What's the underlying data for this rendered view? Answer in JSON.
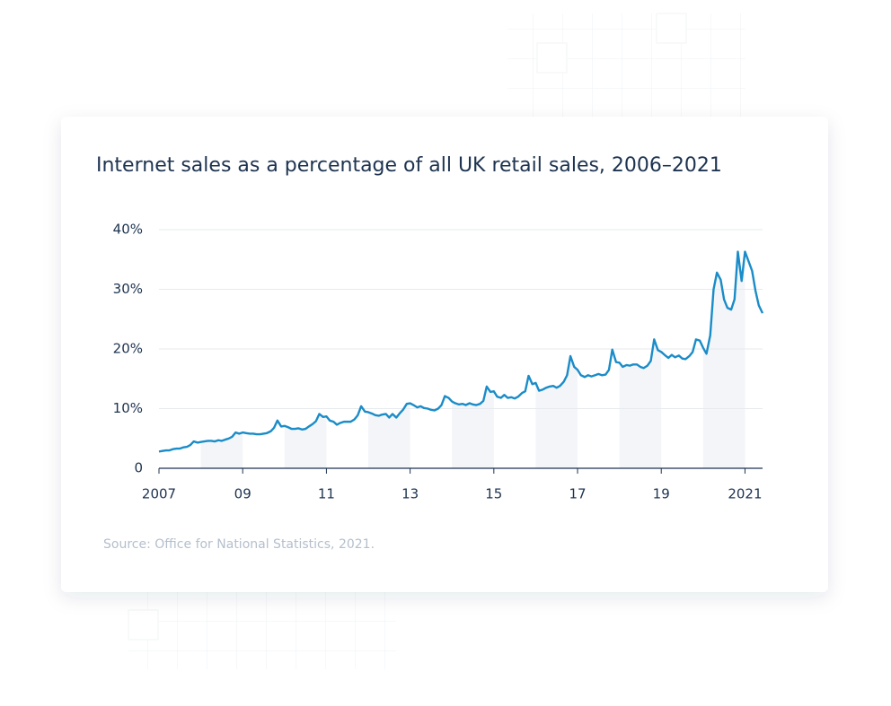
{
  "chart_data": {
    "type": "line",
    "title": "Internet sales as a percentage of all UK retail sales, 2006–2021",
    "source": "Source: Office for National Statistics, 2021.",
    "color": "#1a8cc8",
    "xlim": [
      2007,
      2021.42
    ],
    "xticks": [
      2007,
      {
        "value": 2009,
        "label": "09"
      },
      {
        "value": 2011,
        "label": "11"
      },
      {
        "value": 2013,
        "label": "13"
      },
      {
        "value": 2015,
        "label": "15"
      },
      {
        "value": 2017,
        "label": "17"
      },
      {
        "value": 2019,
        "label": "19"
      },
      2021
    ],
    "ylim": [
      0,
      40
    ],
    "yticks": [
      0,
      {
        "value": 10,
        "label": "10%"
      },
      {
        "value": 20,
        "label": "20%"
      },
      {
        "value": 30,
        "label": "30%"
      },
      {
        "value": 40,
        "label": "40%"
      }
    ],
    "grid": true,
    "x": [
      2007,
      2007.08,
      2007.17,
      2007.25,
      2007.33,
      2007.42,
      2007.5,
      2007.58,
      2007.67,
      2007.75,
      2007.83,
      2007.92,
      2008,
      2008.08,
      2008.17,
      2008.25,
      2008.33,
      2008.42,
      2008.5,
      2008.58,
      2008.67,
      2008.75,
      2008.83,
      2008.92,
      2009,
      2009.08,
      2009.17,
      2009.25,
      2009.33,
      2009.42,
      2009.5,
      2009.58,
      2009.67,
      2009.75,
      2009.83,
      2009.92,
      2010,
      2010.08,
      2010.17,
      2010.25,
      2010.33,
      2010.42,
      2010.5,
      2010.58,
      2010.67,
      2010.75,
      2010.83,
      2010.92,
      2011,
      2011.08,
      2011.17,
      2011.25,
      2011.33,
      2011.42,
      2011.5,
      2011.58,
      2011.67,
      2011.75,
      2011.83,
      2011.92,
      2012,
      2012.08,
      2012.17,
      2012.25,
      2012.33,
      2012.42,
      2012.5,
      2012.58,
      2012.67,
      2012.75,
      2012.83,
      2012.92,
      2013,
      2013.08,
      2013.17,
      2013.25,
      2013.33,
      2013.42,
      2013.5,
      2013.58,
      2013.67,
      2013.75,
      2013.83,
      2013.92,
      2014,
      2014.08,
      2014.17,
      2014.25,
      2014.33,
      2014.42,
      2014.5,
      2014.58,
      2014.67,
      2014.75,
      2014.83,
      2014.92,
      2015,
      2015.08,
      2015.17,
      2015.25,
      2015.33,
      2015.42,
      2015.5,
      2015.58,
      2015.67,
      2015.75,
      2015.83,
      2015.92,
      2016,
      2016.08,
      2016.17,
      2016.25,
      2016.33,
      2016.42,
      2016.5,
      2016.58,
      2016.67,
      2016.75,
      2016.83,
      2016.92,
      2017,
      2017.08,
      2017.17,
      2017.25,
      2017.33,
      2017.42,
      2017.5,
      2017.58,
      2017.67,
      2017.75,
      2017.83,
      2017.92,
      2018,
      2018.08,
      2018.17,
      2018.25,
      2018.33,
      2018.42,
      2018.5,
      2018.58,
      2018.67,
      2018.75,
      2018.83,
      2018.92,
      2019,
      2019.08,
      2019.17,
      2019.25,
      2019.33,
      2019.42,
      2019.5,
      2019.58,
      2019.67,
      2019.75,
      2019.83,
      2019.92,
      2020,
      2020.08,
      2020.17,
      2020.25,
      2020.33,
      2020.42,
      2020.5,
      2020.58,
      2020.67,
      2020.75,
      2020.83,
      2020.92,
      2021,
      2021.08,
      2021.17,
      2021.25,
      2021.33,
      2021.42
    ],
    "values": [
      2.8,
      2.9,
      3.0,
      3.0,
      3.2,
      3.3,
      3.3,
      3.5,
      3.6,
      3.9,
      4.5,
      4.3,
      4.4,
      4.5,
      4.6,
      4.6,
      4.5,
      4.7,
      4.6,
      4.8,
      5.0,
      5.3,
      6.0,
      5.8,
      6.0,
      5.9,
      5.8,
      5.8,
      5.7,
      5.7,
      5.8,
      5.9,
      6.2,
      6.8,
      8.0,
      7.0,
      7.1,
      6.9,
      6.6,
      6.6,
      6.7,
      6.5,
      6.6,
      7.0,
      7.4,
      7.9,
      9.1,
      8.6,
      8.7,
      8.0,
      7.8,
      7.3,
      7.6,
      7.8,
      7.8,
      7.8,
      8.2,
      8.9,
      10.4,
      9.5,
      9.4,
      9.2,
      8.9,
      8.8,
      9.0,
      9.1,
      8.5,
      9.1,
      8.5,
      9.2,
      9.8,
      10.8,
      10.9,
      10.6,
      10.2,
      10.4,
      10.1,
      10.0,
      9.8,
      9.7,
      10.0,
      10.6,
      12.1,
      11.8,
      11.2,
      10.9,
      10.7,
      10.8,
      10.6,
      10.9,
      10.7,
      10.6,
      10.8,
      11.3,
      13.7,
      12.8,
      12.9,
      12.0,
      11.8,
      12.3,
      11.8,
      11.9,
      11.7,
      12.0,
      12.6,
      12.9,
      15.5,
      14.1,
      14.3,
      13.0,
      13.2,
      13.5,
      13.7,
      13.8,
      13.5,
      13.8,
      14.5,
      15.6,
      18.8,
      17.0,
      16.5,
      15.6,
      15.3,
      15.6,
      15.4,
      15.6,
      15.8,
      15.6,
      15.7,
      16.5,
      19.9,
      17.8,
      17.7,
      17.0,
      17.3,
      17.2,
      17.4,
      17.4,
      17.0,
      16.8,
      17.2,
      18.0,
      21.6,
      19.8,
      19.5,
      19.0,
      18.5,
      19.0,
      18.6,
      18.9,
      18.4,
      18.3,
      18.8,
      19.5,
      21.6,
      21.4,
      20.2,
      19.2,
      22.3,
      30.0,
      32.8,
      31.6,
      28.3,
      26.9,
      26.6,
      28.3,
      36.3,
      31.4,
      36.3,
      34.8,
      33.1,
      29.8,
      27.3,
      26.0
    ]
  }
}
